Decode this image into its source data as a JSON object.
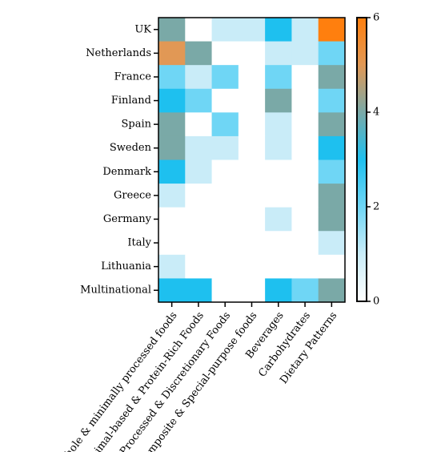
{
  "chart_data": {
    "type": "heatmap",
    "title": "",
    "xlabel": "",
    "ylabel": "",
    "rows": [
      "UK",
      "Netherlands",
      "France",
      "Finland",
      "Spain",
      "Sweden",
      "Denmark",
      "Greece",
      "Germany",
      "Italy",
      "Lithuania",
      "Multinational"
    ],
    "columns": [
      "Whole & minimally processed foods",
      "Animal-based & Protein-Rich Foods",
      "Processed & Discretionary Foods",
      "Composite & Special-purpose foods",
      "Beverages",
      "Carbohydrates",
      "Dietary Patterns"
    ],
    "values": [
      [
        4,
        0,
        1,
        1,
        3,
        1,
        6
      ],
      [
        5,
        4,
        0,
        0,
        1,
        1,
        2
      ],
      [
        2,
        1,
        2,
        0,
        2,
        0,
        4
      ],
      [
        3,
        2,
        0,
        0,
        4,
        0,
        2
      ],
      [
        4,
        0,
        2,
        0,
        1,
        0,
        4
      ],
      [
        4,
        1,
        1,
        0,
        1,
        0,
        3
      ],
      [
        3,
        1,
        0,
        0,
        0,
        0,
        2
      ],
      [
        1,
        0,
        0,
        0,
        0,
        0,
        4
      ],
      [
        0,
        0,
        0,
        0,
        1,
        0,
        4
      ],
      [
        0,
        0,
        0,
        0,
        0,
        0,
        1
      ],
      [
        1,
        0,
        0,
        0,
        0,
        0,
        0
      ],
      [
        3,
        3,
        0,
        0,
        3,
        2,
        4
      ]
    ],
    "colorbar": {
      "min": 0,
      "max": 6,
      "ticks": [
        0,
        2,
        4,
        6
      ],
      "colors": [
        "#ffffff",
        "#c9ecf8",
        "#6fd6f5",
        "#1ec0ef",
        "#7aa9a7",
        "#e19855",
        "#ff7f0e"
      ]
    },
    "grid": false
  }
}
